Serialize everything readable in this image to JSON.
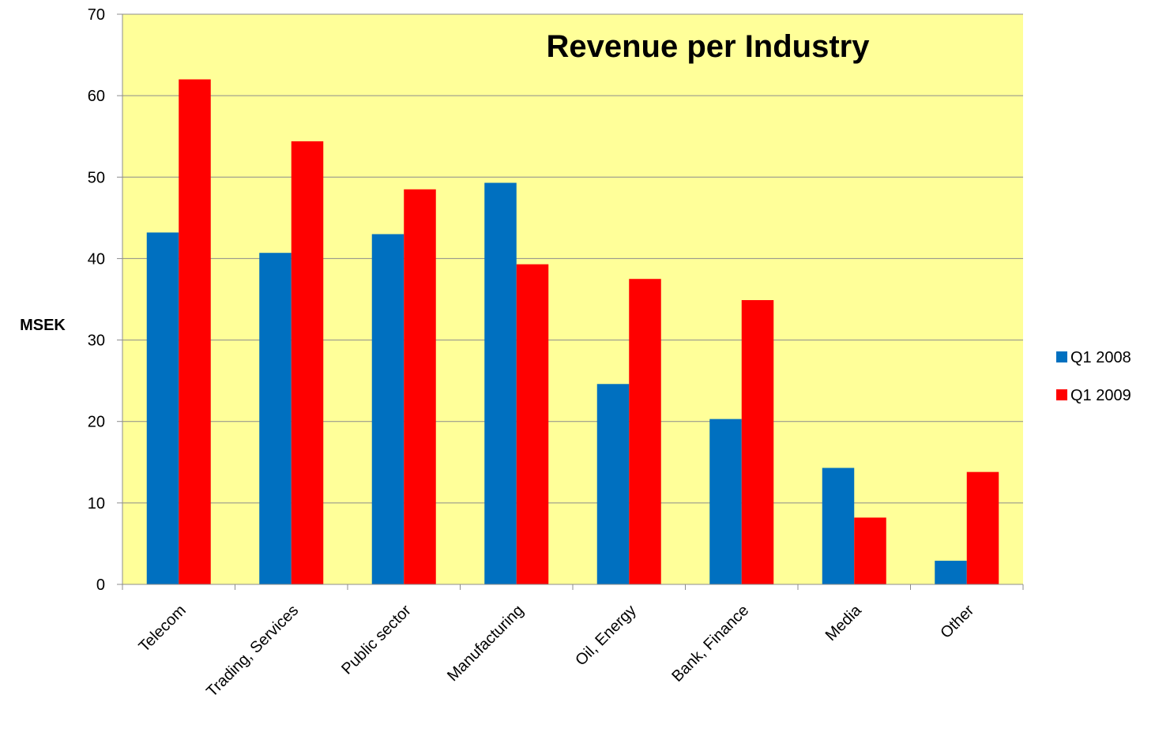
{
  "chart_data": {
    "type": "bar",
    "title": "Revenue per Industry",
    "xlabel": "",
    "ylabel": "MSEK",
    "ylim": [
      0,
      70
    ],
    "yticks": [
      0,
      10,
      20,
      30,
      40,
      50,
      60,
      70
    ],
    "grid": true,
    "legend_position": "right",
    "plot_background": "#FFFF99",
    "categories": [
      "Telecom",
      "Trading, Services",
      "Public sector",
      "Manufacturing",
      "Oil, Energy",
      "Bank, Finance",
      "Media",
      "Other"
    ],
    "series": [
      {
        "name": "Q1 2008",
        "color": "#0070C0",
        "values": [
          43.2,
          40.7,
          43.0,
          49.3,
          24.6,
          20.3,
          14.3,
          2.9
        ]
      },
      {
        "name": "Q1 2009",
        "color": "#FF0000",
        "values": [
          62.0,
          54.4,
          48.5,
          39.3,
          37.5,
          34.9,
          8.2,
          13.8
        ]
      }
    ]
  }
}
